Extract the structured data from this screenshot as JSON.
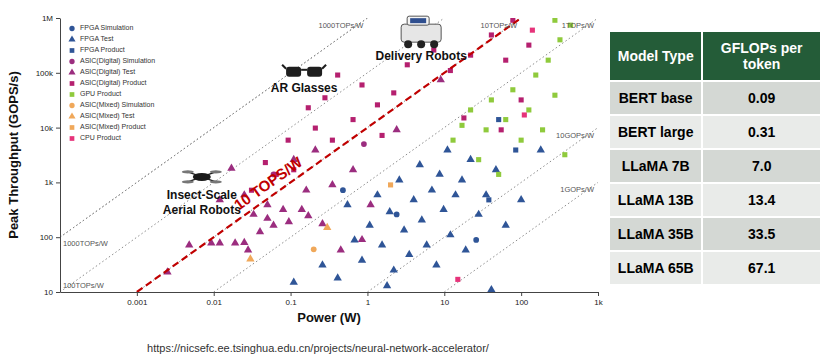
{
  "chart_data": {
    "type": "scatter",
    "x_label": "Power (W)",
    "y_label": "Peak Throughput (GOPS/s)",
    "source": "https://nicsefc.ee.tsinghua.edu.cn/projects/neural-network-accelerator/",
    "log": true,
    "legend": "top-left",
    "xlim": [
      0.0001,
      1000
    ],
    "ylim": [
      10,
      1000000
    ],
    "xticks": [
      0.001,
      0.01,
      0.1,
      1,
      10,
      100,
      {
        "value": 1000,
        "label": "1k"
      }
    ],
    "yticks": [
      10,
      100,
      {
        "value": 1000,
        "label": "1k"
      },
      {
        "value": 10000,
        "label": "10k"
      },
      {
        "value": 100000,
        "label": "100k"
      },
      {
        "value": 1000000,
        "label": "1M"
      }
    ],
    "series": [
      {
        "name": "FPGA Simulation",
        "color": "#2f5597",
        "marker": "circle",
        "x": [
          0.48,
          2.4,
          26
        ],
        "values": [
          720,
          260,
          89
        ]
      },
      {
        "name": "FPGA Test",
        "color": "#2f5597",
        "marker": "triangle",
        "x": [
          0.55,
          0.68,
          0.85,
          1.07,
          1.35,
          1.55,
          1.95,
          2.2,
          2.6,
          3.0,
          3.5,
          4.0,
          4.8,
          5.1,
          5.9,
          6.9,
          7.9,
          8.7,
          9.8,
          11,
          12,
          14,
          17,
          19,
          22,
          28,
          35,
          41,
          47,
          63,
          100,
          180,
          1.8,
          0.11,
          0.26,
          0.41
        ],
        "values": [
          390,
          89,
          38,
          165,
          590,
          72,
          290,
          25,
          1100,
          135,
          48,
          480,
          2100,
          205,
          72,
          720,
          31,
          1400,
          320,
          3900,
          110,
          590,
          1100,
          58,
          2600,
          260,
          590,
          11,
          1700,
          165,
          480,
          3900,
          13,
          15,
          31,
          18
        ]
      },
      {
        "name": "FPGA Product",
        "color": "#2f5597",
        "marker": "square",
        "x": [
          38,
          51,
          85
        ],
        "values": [
          480,
          14000,
          3900
        ]
      },
      {
        "name": "ASIC(Digital) Simulation",
        "color": "#9b2d7f",
        "marker": "circle",
        "x": [
          0.06,
          0.9
        ],
        "values": [
          1400,
          5000
        ]
      },
      {
        "name": "ASIC(Digital) Test",
        "color": "#9b2d7f",
        "marker": "triangle",
        "x": [
          0.0025,
          0.0048,
          0.0093,
          0.012,
          0.019,
          0.025,
          0.033,
          0.028,
          0.05,
          0.06,
          0.08,
          0.095,
          0.14,
          0.04,
          0.17,
          0.26,
          0.45,
          0.16,
          0.11,
          0.21,
          0.35,
          0.65,
          1.1,
          0.85,
          0.017,
          0.012,
          0.025,
          0.05,
          2.4,
          9
        ],
        "values": [
          23,
          72,
          78,
          78,
          78,
          80,
          260,
          58,
          220,
          165,
          320,
          190,
          320,
          125,
          245,
          175,
          58,
          720,
          2600,
          3900,
          900,
          1700,
          390,
          90,
          1800,
          480,
          590,
          390,
          9100,
          74000
        ]
      },
      {
        "name": "ASIC(Digital) Product",
        "color": "#b5206f",
        "marker": "square",
        "x": [
          0.031,
          0.047,
          0.065,
          0.093,
          0.11,
          0.17,
          0.21,
          0.28,
          0.35,
          0.41,
          0.65,
          0.85,
          1.35,
          2.2,
          3.3,
          7.3,
          12,
          22,
          41,
          63,
          78,
          100,
          126,
          55,
          18,
          1.55
        ],
        "values": [
          720,
          2300,
          1400,
          5900,
          1700,
          23000,
          9800,
          35000,
          5900,
          91000,
          14000,
          60000,
          26000,
          43000,
          140000,
          260000,
          110000,
          210000,
          490000,
          170000,
          910000,
          32000,
          320000,
          9100,
          15000,
          7200
        ]
      },
      {
        "name": "GPU Product",
        "color": "#8fca3c",
        "marker": "square",
        "x": [
          13,
          17,
          22,
          28,
          35,
          41,
          51,
          63,
          78,
          100,
          126,
          155,
          190,
          225,
          275,
          320,
          370,
          440,
          275
        ],
        "values": [
          5900,
          11000,
          21000,
          2600,
          9100,
          32000,
          1400,
          14000,
          49000,
          5900,
          21000,
          91000,
          9100,
          170000,
          39000,
          400000,
          3200,
          740000,
          910000
        ]
      },
      {
        "name": "ASIC(Mixed) Simulation",
        "color": "#f0a85a",
        "marker": "circle",
        "x": [
          0.2
        ],
        "values": [
          60
        ]
      },
      {
        "name": "ASIC(Mixed) Test",
        "color": "#f0a85a",
        "marker": "triangle",
        "x": [
          0.03,
          0.3
        ],
        "values": [
          40,
          150
        ]
      },
      {
        "name": "ASIC(Mixed) Product",
        "color": "#f0a85a",
        "marker": "square",
        "x": [
          2
        ],
        "values": [
          900
        ]
      },
      {
        "name": "CPU Product",
        "color": "#e6337a",
        "marker": "square",
        "x": [
          15,
          110,
          140
        ],
        "values": [
          17,
          17000,
          600000
        ]
      }
    ],
    "reference_lines": [
      {
        "value": 1000000,
        "label": "1000TOPs/W",
        "color": "#8c8c8c",
        "line_style": "dotted"
      },
      {
        "value": 1000000,
        "label": "1000TOPs/W",
        "color": "#8c8c8c",
        "line_style": "dotted"
      },
      {
        "value": 100000,
        "label": "100TOPs/W",
        "color": "#8c8c8c",
        "line_style": "dotted"
      },
      {
        "value": 10000,
        "label": "10TOPs/W",
        "color": "#8c8c8c",
        "line_style": "dotted"
      },
      {
        "value": 1000,
        "label": "1TOPs/W",
        "color": "#8c8c8c",
        "line_style": "dotted"
      },
      {
        "value": 10,
        "label": "10GOPs/W",
        "color": "#8c8c8c",
        "line_style": "dotted"
      },
      {
        "value": 1,
        "label": "1GOPs/W",
        "color": "#8c8c8c",
        "line_style": "dotted"
      },
      {
        "value": 10000,
        "label": "10 TOPS/W",
        "color": "#c00000",
        "line_style": "dashed"
      }
    ],
    "annotations": [
      {
        "text": "Insect-Scale",
        "x": 0.007,
        "y": 500
      },
      {
        "text": "Aerial Robots",
        "x": 0.007,
        "y": 260
      },
      {
        "text": "AR Glasses",
        "x": 0.15,
        "y": 45000
      },
      {
        "text": "Delivery Robots",
        "x": 5,
        "y": 170000
      }
    ]
  },
  "table": {
    "columns": [
      "Model Type",
      "GFLOPs per token"
    ],
    "rows": [
      [
        "BERT base",
        0.09
      ],
      [
        "BERT large",
        0.31
      ],
      [
        "LLaMA 7B",
        {
          "value": 7,
          "label": "7.0"
        }
      ],
      [
        "LLaMA 13B",
        13.4
      ],
      [
        "LLaMA 35B",
        33.5
      ],
      [
        "LLaMA 65B",
        67.1
      ]
    ]
  }
}
